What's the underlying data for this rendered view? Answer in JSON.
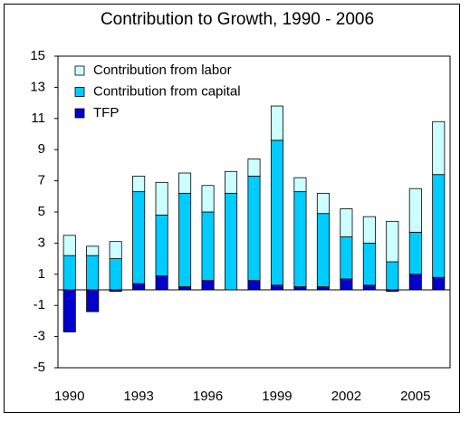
{
  "chart_data": {
    "type": "stacked-bar",
    "title": "Contribution to Growth, 1990 - 2006",
    "categories": [
      "1990",
      null,
      null,
      "1993",
      null,
      null,
      "1996",
      null,
      null,
      "1999",
      null,
      null,
      "2002",
      null,
      null,
      "2005",
      null
    ],
    "series": [
      {
        "name": "Contribution from labor",
        "color": "#ccffff",
        "values": [
          1.3,
          0.6,
          1.1,
          1.0,
          2.1,
          1.3,
          1.7,
          1.4,
          1.1,
          2.2,
          0.9,
          1.3,
          1.8,
          1.7,
          2.6,
          2.8,
          3.4
        ]
      },
      {
        "name": "Contribution from capital",
        "color": "#00ccff",
        "values": [
          2.2,
          2.2,
          2.0,
          5.9,
          3.9,
          6.0,
          4.4,
          6.2,
          6.7,
          9.3,
          6.1,
          4.7,
          2.7,
          2.7,
          1.8,
          2.7,
          6.6
        ]
      },
      {
        "name": "TFP",
        "color": "#0000cc",
        "values": [
          -2.7,
          -1.4,
          -0.1,
          0.4,
          0.9,
          0.2,
          0.6,
          0.0,
          0.6,
          0.3,
          0.2,
          0.2,
          0.7,
          0.3,
          -0.1,
          1.0,
          0.8
        ]
      }
    ],
    "ylim": [
      -5,
      15
    ],
    "yticks": [
      -5,
      -3,
      -1,
      1,
      3,
      5,
      7,
      9,
      11,
      13,
      15
    ],
    "grid": false,
    "legend": "upper-left"
  }
}
